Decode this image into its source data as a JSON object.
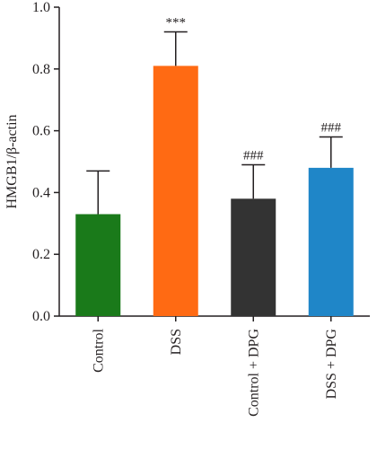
{
  "chart_data": {
    "type": "bar",
    "ylabel": "HMGB1/β-actin",
    "xlabel": "",
    "ylim": [
      0,
      1.0
    ],
    "yticks": [
      "0.0",
      "0.2",
      "0.4",
      "0.6",
      "0.8",
      "1.0"
    ],
    "categories": [
      "Control",
      "DSS",
      "Control + DPG",
      "DSS + DPG"
    ],
    "values": [
      0.33,
      0.81,
      0.38,
      0.48
    ],
    "errors": [
      0.14,
      0.11,
      0.11,
      0.1
    ],
    "annotations": [
      "",
      "***",
      "###",
      "###"
    ],
    "colors": [
      "#1a7a1a",
      "#ff6a13",
      "#333333",
      "#1f86c8"
    ],
    "grid": false
  }
}
